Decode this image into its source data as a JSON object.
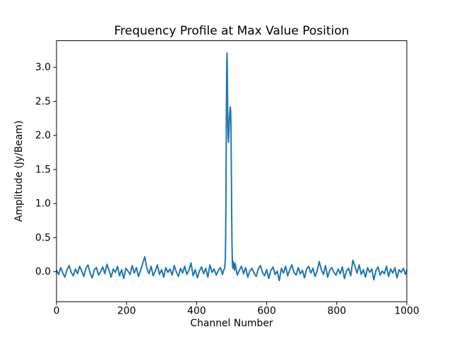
{
  "chart_data": {
    "type": "line",
    "title": "Frequency Profile at Max Value Position",
    "xlabel": "Channel Number",
    "ylabel": "Amplitude (Jy/Beam)",
    "xlim": [
      0,
      1000
    ],
    "ylim": [
      -0.44,
      3.39
    ],
    "grid": false,
    "legend": "none",
    "line_color": "#1f77b4",
    "background_color": "#ffffff",
    "xticks": [
      0,
      200,
      400,
      600,
      800,
      1000
    ],
    "xtick_labels": [
      "0",
      "200",
      "400",
      "600",
      "800",
      "1000"
    ],
    "yticks": [
      0.0,
      0.5,
      1.0,
      1.5,
      2.0,
      2.5,
      3.0
    ],
    "ytick_labels": [
      "0.0",
      "0.5",
      "1.0",
      "1.5",
      "2.0",
      "2.5",
      "3.0"
    ],
    "peak": {
      "channel": 487,
      "amplitude": 3.21,
      "secondary_channel": 496,
      "secondary_amplitude": 2.42
    },
    "series": [
      {
        "name": "frequency-profile",
        "x": [
          0,
          6,
          12,
          18,
          24,
          30,
          36,
          42,
          48,
          54,
          60,
          66,
          72,
          78,
          84,
          90,
          96,
          102,
          108,
          114,
          120,
          126,
          132,
          138,
          144,
          150,
          156,
          162,
          168,
          174,
          180,
          186,
          192,
          198,
          204,
          210,
          216,
          222,
          228,
          234,
          240,
          246,
          252,
          258,
          264,
          270,
          276,
          282,
          288,
          294,
          300,
          306,
          312,
          318,
          324,
          330,
          336,
          342,
          348,
          354,
          360,
          366,
          372,
          378,
          384,
          390,
          396,
          402,
          408,
          414,
          420,
          426,
          432,
          438,
          444,
          450,
          456,
          462,
          468,
          474,
          477,
          480,
          482,
          483,
          484,
          485,
          486,
          487,
          488,
          489,
          490,
          491,
          492,
          493,
          494,
          495,
          496,
          497,
          498,
          499,
          500,
          501,
          502,
          503,
          505,
          508,
          510,
          516,
          522,
          528,
          534,
          540,
          546,
          552,
          558,
          564,
          570,
          576,
          582,
          588,
          594,
          600,
          606,
          612,
          618,
          624,
          630,
          636,
          642,
          648,
          654,
          660,
          666,
          672,
          678,
          684,
          690,
          696,
          702,
          708,
          714,
          720,
          726,
          732,
          738,
          744,
          750,
          756,
          762,
          768,
          774,
          780,
          786,
          792,
          798,
          804,
          810,
          816,
          822,
          828,
          834,
          840,
          846,
          852,
          858,
          864,
          870,
          876,
          882,
          888,
          894,
          900,
          906,
          912,
          918,
          924,
          930,
          936,
          942,
          948,
          954,
          960,
          966,
          972,
          978,
          984,
          990,
          996,
          1000
        ],
        "y": [
          0.02,
          -0.04,
          0.06,
          -0.02,
          -0.08,
          0.03,
          0.09,
          -0.01,
          -0.06,
          0.04,
          -0.03,
          0.08,
          0.01,
          -0.07,
          0.05,
          0.1,
          -0.02,
          -0.09,
          0.03,
          0.06,
          -0.05,
          0.0,
          0.07,
          -0.03,
          0.11,
          0.02,
          -0.08,
          0.04,
          -0.01,
          0.08,
          -0.06,
          0.03,
          -0.1,
          0.05,
          0.01,
          -0.04,
          0.09,
          -0.02,
          0.06,
          -0.07,
          0.02,
          0.12,
          0.22,
          0.05,
          -0.03,
          0.08,
          -0.06,
          0.01,
          0.1,
          -0.04,
          0.03,
          -0.08,
          0.06,
          -0.01,
          0.04,
          -0.05,
          0.09,
          0.0,
          -0.07,
          0.05,
          -0.02,
          0.08,
          -0.04,
          0.02,
          0.13,
          -0.06,
          0.03,
          -0.09,
          0.01,
          0.07,
          -0.03,
          0.05,
          -0.08,
          0.1,
          -0.01,
          0.04,
          -0.05,
          0.02,
          0.06,
          -0.04,
          0.02,
          0.05,
          0.18,
          0.55,
          1.35,
          2.4,
          3.0,
          3.21,
          2.75,
          2.2,
          1.98,
          1.9,
          2.02,
          2.18,
          2.28,
          2.36,
          2.42,
          2.38,
          2.15,
          1.6,
          0.9,
          0.4,
          0.15,
          0.05,
          0.15,
          0.02,
          0.12,
          -0.05,
          0.02,
          0.08,
          -0.03,
          0.06,
          -0.08,
          0.01,
          0.05,
          -0.02,
          -0.07,
          0.04,
          0.09,
          -0.01,
          -0.06,
          0.03,
          -0.1,
          0.02,
          0.07,
          -0.04,
          0.01,
          -0.13,
          0.05,
          -0.02,
          0.08,
          -0.06,
          0.03,
          0.1,
          -0.01,
          -0.05,
          0.06,
          -0.03,
          0.02,
          -0.09,
          0.04,
          0.08,
          -0.02,
          0.05,
          -0.07,
          0.01,
          0.15,
          0.03,
          -0.04,
          0.09,
          -0.08,
          0.02,
          0.06,
          -0.01,
          -0.05,
          0.04,
          -0.03,
          0.07,
          -0.1,
          0.01,
          0.05,
          -0.06,
          0.17,
          0.08,
          -0.02,
          0.1,
          -0.04,
          0.03,
          -0.08,
          0.06,
          -0.01,
          0.04,
          -0.12,
          0.02,
          0.07,
          -0.05,
          0.01,
          -0.03,
          0.08,
          -0.07,
          0.04,
          -0.02,
          0.06,
          -0.09,
          0.03,
          -0.01,
          0.05,
          -0.04,
          0.02
        ]
      }
    ]
  }
}
